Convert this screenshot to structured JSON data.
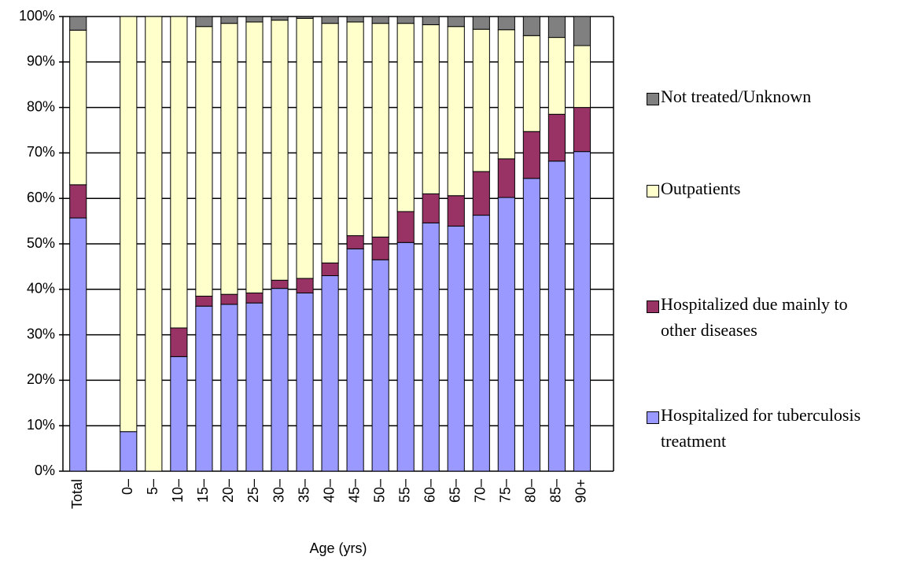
{
  "chart_data": {
    "type": "stacked-bar",
    "x_label": "Age (yrs)",
    "categories": [
      "Total",
      null,
      "0–",
      "5–",
      "10–",
      "15–",
      "20–",
      "25–",
      "30–",
      "35–",
      "40–",
      "45–",
      "50–",
      "55–",
      "60–",
      "65–",
      "70–",
      "75–",
      "80–",
      "85–",
      "90+"
    ],
    "series": [
      {
        "name": "Hospitalized for tuberculosis treatment",
        "color": "#9999ff",
        "values": [
          55.7,
          null,
          8.7,
          0,
          25.2,
          36.3,
          36.7,
          37.0,
          40.2,
          39.2,
          43.0,
          48.9,
          46.5,
          50.3,
          54.6,
          53.9,
          56.3,
          60.2,
          64.4,
          68.2,
          70.3
        ]
      },
      {
        "name": "Hospitalized due mainly to other diseases",
        "color": "#993366",
        "values": [
          7.3,
          null,
          0,
          0,
          6.3,
          2.2,
          2.2,
          2.2,
          1.8,
          3.2,
          2.8,
          2.9,
          5.0,
          6.8,
          6.4,
          6.7,
          9.6,
          8.5,
          10.3,
          10.3,
          9.7
        ]
      },
      {
        "name": "Outpatients",
        "color": "#ffffcc",
        "values": [
          34.0,
          null,
          91.3,
          100,
          68.5,
          59.3,
          59.6,
          59.6,
          57.2,
          57.2,
          52.7,
          47.0,
          47.0,
          41.4,
          37.2,
          37.2,
          31.3,
          28.4,
          21.1,
          16.9,
          13.6
        ]
      },
      {
        "name": "Not treated/Unknown",
        "color": "#808080",
        "values": [
          3.0,
          null,
          0,
          0,
          0,
          2.2,
          1.5,
          1.2,
          0.8,
          0.4,
          1.5,
          1.2,
          1.5,
          1.5,
          1.8,
          2.2,
          2.8,
          2.9,
          4.2,
          4.6,
          6.4
        ]
      }
    ],
    "ylim": [
      0,
      100
    ],
    "yticks": [
      {
        "value": 0,
        "label": "0%"
      },
      {
        "value": 10,
        "label": "10%"
      },
      {
        "value": 20,
        "label": "20%"
      },
      {
        "value": 30,
        "label": "30%"
      },
      {
        "value": 40,
        "label": "40%"
      },
      {
        "value": 50,
        "label": "50%"
      },
      {
        "value": 60,
        "label": "60%"
      },
      {
        "value": 70,
        "label": "70%"
      },
      {
        "value": 80,
        "label": "80%"
      },
      {
        "value": 90,
        "label": "90%"
      },
      {
        "value": 100,
        "label": "100%"
      }
    ],
    "grid": true
  }
}
